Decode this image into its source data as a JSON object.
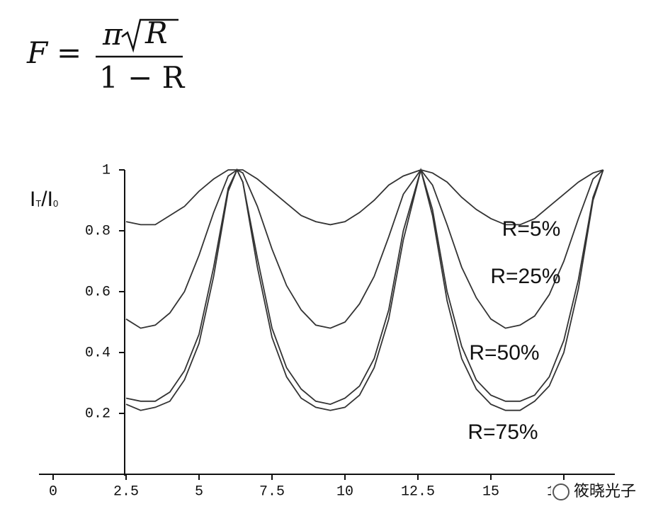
{
  "formula": {
    "lhs": "F",
    "equals": "=",
    "numerator": "π",
    "radicand": "R",
    "denominator": "1 − R"
  },
  "chart_data": {
    "type": "line",
    "ylabel": [
      "I",
      "T",
      "/I",
      "0"
    ],
    "x": [
      2.5,
      3,
      3.5,
      4,
      4.5,
      5,
      5.5,
      6,
      6.3,
      6.5,
      7,
      7.5,
      8,
      8.5,
      9,
      9.5,
      10,
      10.5,
      11,
      11.5,
      12,
      12.6,
      13,
      13.5,
      14,
      14.5,
      15,
      15.5,
      16,
      16.5,
      17,
      17.5,
      18,
      18.5,
      18.85
    ],
    "series": [
      {
        "name": "R=5%",
        "color": "#333333",
        "values": [
          0.83,
          0.82,
          0.82,
          0.85,
          0.88,
          0.93,
          0.97,
          1.0,
          1,
          1.0,
          0.97,
          0.93,
          0.89,
          0.85,
          0.83,
          0.82,
          0.83,
          0.86,
          0.9,
          0.95,
          0.98,
          1,
          0.99,
          0.96,
          0.91,
          0.87,
          0.84,
          0.82,
          0.82,
          0.84,
          0.88,
          0.92,
          0.96,
          0.99,
          1
        ]
      },
      {
        "name": "R=25%",
        "color": "#333333",
        "values": [
          0.51,
          0.48,
          0.49,
          0.53,
          0.6,
          0.72,
          0.86,
          0.98,
          1,
          0.99,
          0.88,
          0.74,
          0.62,
          0.54,
          0.49,
          0.48,
          0.5,
          0.56,
          0.65,
          0.78,
          0.92,
          1,
          0.95,
          0.82,
          0.68,
          0.58,
          0.51,
          0.48,
          0.49,
          0.52,
          0.59,
          0.7,
          0.84,
          0.97,
          1
        ]
      },
      {
        "name": "R=50%",
        "color": "#333333",
        "values": [
          0.25,
          0.24,
          0.24,
          0.27,
          0.34,
          0.46,
          0.68,
          0.94,
          1,
          0.96,
          0.71,
          0.48,
          0.35,
          0.28,
          0.24,
          0.23,
          0.25,
          0.29,
          0.38,
          0.54,
          0.8,
          1,
          0.87,
          0.6,
          0.42,
          0.31,
          0.26,
          0.24,
          0.24,
          0.26,
          0.32,
          0.44,
          0.64,
          0.91,
          1
        ]
      },
      {
        "name": "R=75%",
        "color": "#333333",
        "values": [
          0.23,
          0.21,
          0.22,
          0.24,
          0.31,
          0.43,
          0.65,
          0.93,
          1,
          0.96,
          0.68,
          0.45,
          0.32,
          0.25,
          0.22,
          0.21,
          0.22,
          0.26,
          0.35,
          0.51,
          0.77,
          1,
          0.85,
          0.57,
          0.38,
          0.28,
          0.23,
          0.21,
          0.21,
          0.24,
          0.29,
          0.4,
          0.61,
          0.9,
          1
        ]
      }
    ],
    "xlim": [
      0,
      18.85
    ],
    "ylim": [
      0,
      1
    ],
    "xticks": [
      0,
      2.5,
      5,
      7.5,
      10,
      12.5,
      15,
      17.5
    ],
    "yticks": [
      0.2,
      0.4,
      0.6,
      0.8,
      1
    ]
  },
  "watermark": "筱晓光子"
}
